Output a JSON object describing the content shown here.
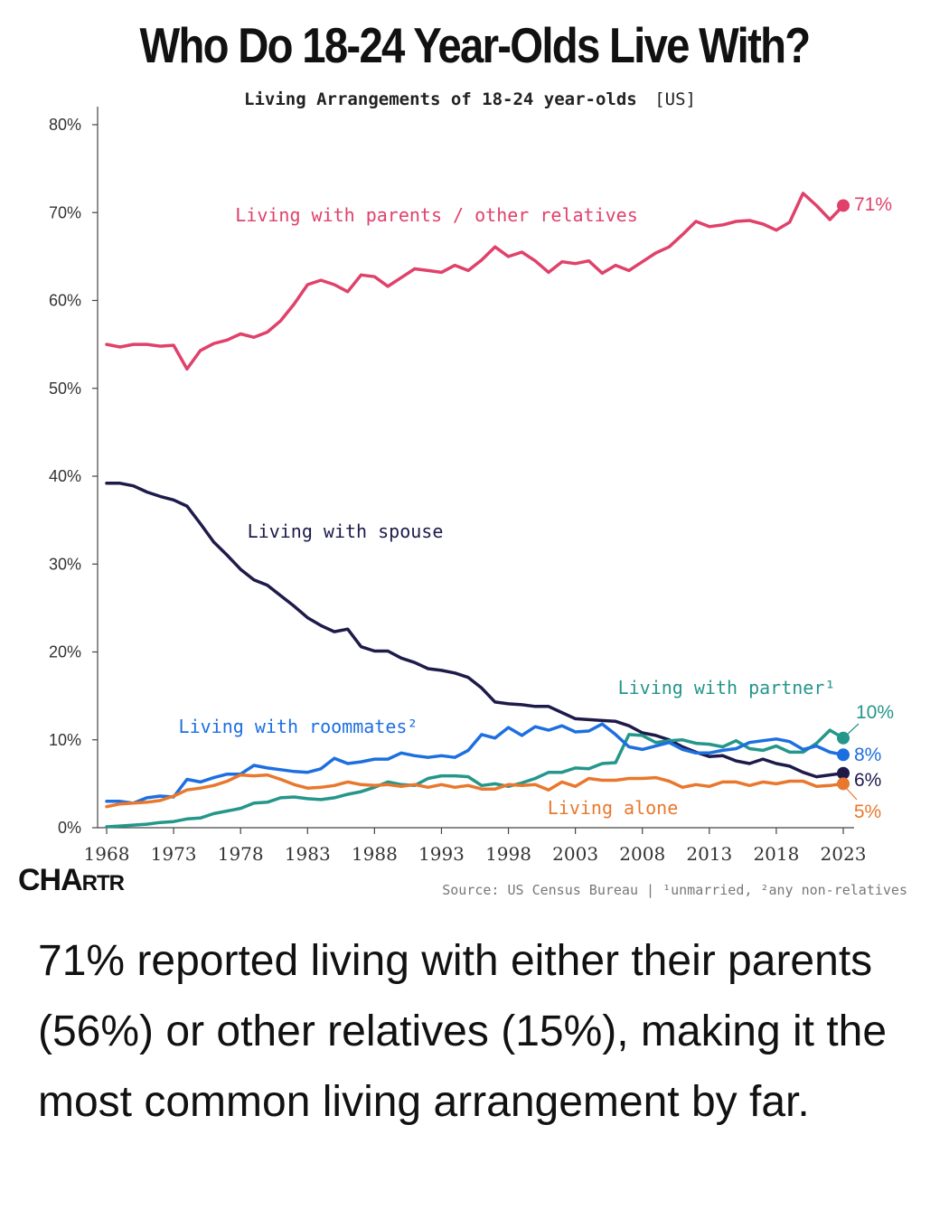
{
  "title": "Who Do 18-24 Year-Olds Live With?",
  "chart_data": {
    "type": "line",
    "subtitle": "Living Arrangements of 18-24 year-olds",
    "subtitle_tag": "[US]",
    "xlabel": "",
    "ylabel": "",
    "xlim": [
      1968,
      2023
    ],
    "ylim": [
      0,
      80
    ],
    "x_ticks": [
      "1968",
      "1973",
      "1978",
      "1983",
      "1988",
      "1993",
      "1998",
      "2003",
      "2008",
      "2013",
      "2018",
      "2023"
    ],
    "y_ticks": [
      "0%",
      "10%",
      "20%",
      "30%",
      "40%",
      "50%",
      "60%",
      "70%",
      "80%"
    ],
    "grid": false,
    "series": [
      {
        "name": "Living with parents / other relatives",
        "color": "#e0416a",
        "end_label": "71%",
        "x": [
          1968,
          1969,
          1970,
          1971,
          1972,
          1973,
          1974,
          1975,
          1976,
          1977,
          1978,
          1979,
          1980,
          1981,
          1982,
          1983,
          1984,
          1985,
          1986,
          1987,
          1988,
          1989,
          1990,
          1991,
          1992,
          1993,
          1994,
          1995,
          1996,
          1997,
          1998,
          1999,
          2000,
          2001,
          2002,
          2003,
          2004,
          2005,
          2006,
          2007,
          2008,
          2009,
          2010,
          2011,
          2012,
          2013,
          2014,
          2015,
          2016,
          2017,
          2018,
          2019,
          2020,
          2021,
          2022,
          2023
        ],
        "values": [
          55.0,
          54.7,
          55.0,
          55.0,
          54.8,
          54.9,
          52.2,
          54.3,
          55.1,
          55.5,
          56.2,
          55.8,
          56.4,
          57.7,
          59.6,
          61.8,
          62.3,
          61.8,
          61.0,
          62.9,
          62.7,
          61.6,
          62.6,
          63.6,
          63.4,
          63.2,
          64.0,
          63.4,
          64.6,
          66.1,
          65.0,
          65.5,
          64.5,
          63.2,
          64.4,
          64.2,
          64.5,
          63.1,
          64.0,
          63.4,
          64.4,
          65.4,
          66.1,
          67.5,
          69.0,
          68.4,
          68.6,
          69.0,
          69.1,
          68.7,
          68.0,
          68.9,
          72.2,
          70.8,
          69.2,
          70.8
        ]
      },
      {
        "name": "Living with spouse",
        "color": "#1e1b4b",
        "end_label": "6%",
        "x": [
          1968,
          1969,
          1970,
          1971,
          1972,
          1973,
          1974,
          1975,
          1976,
          1977,
          1978,
          1979,
          1980,
          1981,
          1982,
          1983,
          1984,
          1985,
          1986,
          1987,
          1988,
          1989,
          1990,
          1991,
          1992,
          1993,
          1994,
          1995,
          1996,
          1997,
          1998,
          1999,
          2000,
          2001,
          2002,
          2003,
          2004,
          2005,
          2006,
          2007,
          2008,
          2009,
          2010,
          2011,
          2012,
          2013,
          2014,
          2015,
          2016,
          2017,
          2018,
          2019,
          2020,
          2021,
          2022,
          2023
        ],
        "values": [
          39.2,
          39.2,
          38.9,
          38.2,
          37.7,
          37.3,
          36.6,
          34.6,
          32.5,
          31.0,
          29.4,
          28.2,
          27.6,
          26.4,
          25.2,
          23.9,
          23.0,
          22.3,
          22.6,
          20.6,
          20.1,
          20.1,
          19.3,
          18.8,
          18.1,
          17.9,
          17.6,
          17.1,
          15.9,
          14.3,
          14.1,
          14.0,
          13.8,
          13.8,
          13.1,
          12.4,
          12.3,
          12.2,
          12.1,
          11.6,
          10.8,
          10.5,
          10.0,
          9.2,
          8.6,
          8.1,
          8.2,
          7.6,
          7.3,
          7.8,
          7.3,
          7.0,
          6.3,
          5.8,
          6.0,
          6.2
        ]
      },
      {
        "name": "Living with partner¹",
        "color": "#24968a",
        "end_label": "10%",
        "x": [
          1968,
          1969,
          1970,
          1971,
          1972,
          1973,
          1974,
          1975,
          1976,
          1977,
          1978,
          1979,
          1980,
          1981,
          1982,
          1983,
          1984,
          1985,
          1986,
          1987,
          1988,
          1989,
          1990,
          1991,
          1992,
          1993,
          1994,
          1995,
          1996,
          1997,
          1998,
          1999,
          2000,
          2001,
          2002,
          2003,
          2004,
          2005,
          2006,
          2007,
          2008,
          2009,
          2010,
          2011,
          2012,
          2013,
          2014,
          2015,
          2016,
          2017,
          2018,
          2019,
          2020,
          2021,
          2022,
          2023
        ],
        "values": [
          0.1,
          0.2,
          0.3,
          0.4,
          0.6,
          0.7,
          1.0,
          1.1,
          1.6,
          1.9,
          2.2,
          2.8,
          2.9,
          3.4,
          3.5,
          3.3,
          3.2,
          3.4,
          3.8,
          4.1,
          4.6,
          5.2,
          4.9,
          4.8,
          5.6,
          5.9,
          5.9,
          5.8,
          4.8,
          5.0,
          4.7,
          5.1,
          5.6,
          6.3,
          6.3,
          6.8,
          6.7,
          7.3,
          7.4,
          10.6,
          10.5,
          9.7,
          9.9,
          10.0,
          9.6,
          9.5,
          9.2,
          9.9,
          9.0,
          8.8,
          9.3,
          8.6,
          8.6,
          9.6,
          11.1,
          10.2
        ]
      },
      {
        "name": "Living with roommates²",
        "color": "#1d6fe0",
        "end_label": "8%",
        "x": [
          1968,
          1969,
          1970,
          1971,
          1972,
          1973,
          1974,
          1975,
          1976,
          1977,
          1978,
          1979,
          1980,
          1981,
          1982,
          1983,
          1984,
          1985,
          1986,
          1987,
          1988,
          1989,
          1990,
          1991,
          1992,
          1993,
          1994,
          1995,
          1996,
          1997,
          1998,
          1999,
          2000,
          2001,
          2002,
          2003,
          2004,
          2005,
          2006,
          2007,
          2008,
          2009,
          2010,
          2011,
          2012,
          2013,
          2014,
          2015,
          2016,
          2017,
          2018,
          2019,
          2020,
          2021,
          2022,
          2023
        ],
        "values": [
          3.0,
          3.0,
          2.8,
          3.4,
          3.6,
          3.5,
          5.5,
          5.2,
          5.7,
          6.1,
          6.1,
          7.1,
          6.8,
          6.6,
          6.4,
          6.3,
          6.7,
          7.9,
          7.3,
          7.5,
          7.8,
          7.8,
          8.5,
          8.2,
          8.0,
          8.2,
          8.0,
          8.8,
          10.6,
          10.2,
          11.4,
          10.5,
          11.5,
          11.1,
          11.6,
          10.9,
          11.0,
          11.8,
          10.6,
          9.2,
          8.9,
          9.3,
          9.7,
          8.9,
          8.5,
          8.5,
          8.8,
          9.0,
          9.7,
          9.9,
          10.1,
          9.8,
          8.9,
          9.3,
          8.6,
          8.3
        ]
      },
      {
        "name": "Living alone",
        "color": "#e8782d",
        "end_label": "5%",
        "x": [
          1968,
          1969,
          1970,
          1971,
          1972,
          1973,
          1974,
          1975,
          1976,
          1977,
          1978,
          1979,
          1980,
          1981,
          1982,
          1983,
          1984,
          1985,
          1986,
          1987,
          1988,
          1989,
          1990,
          1991,
          1992,
          1993,
          1994,
          1995,
          1996,
          1997,
          1998,
          1999,
          2000,
          2001,
          2002,
          2003,
          2004,
          2005,
          2006,
          2007,
          2008,
          2009,
          2010,
          2011,
          2012,
          2013,
          2014,
          2015,
          2016,
          2017,
          2018,
          2019,
          2020,
          2021,
          2022,
          2023
        ],
        "values": [
          2.4,
          2.7,
          2.8,
          2.9,
          3.1,
          3.6,
          4.3,
          4.5,
          4.8,
          5.3,
          6.0,
          5.9,
          6.0,
          5.5,
          4.9,
          4.5,
          4.6,
          4.8,
          5.2,
          4.9,
          4.8,
          4.9,
          4.7,
          4.9,
          4.6,
          4.9,
          4.6,
          4.8,
          4.4,
          4.4,
          4.9,
          4.8,
          4.9,
          4.3,
          5.2,
          4.7,
          5.6,
          5.4,
          5.4,
          5.6,
          5.6,
          5.7,
          5.3,
          4.6,
          4.9,
          4.7,
          5.2,
          5.2,
          4.8,
          5.2,
          5.0,
          5.3,
          5.3,
          4.7,
          4.8,
          5.0
        ]
      }
    ],
    "source": "Source: US Census Bureau | ¹unmarried, ²any non-relatives"
  },
  "brand": {
    "name_big": "CHA",
    "name_small": "RTR"
  },
  "caption": "71% reported living with either their parents (56%) or other relatives (15%), making it the most common living arrangement by far."
}
